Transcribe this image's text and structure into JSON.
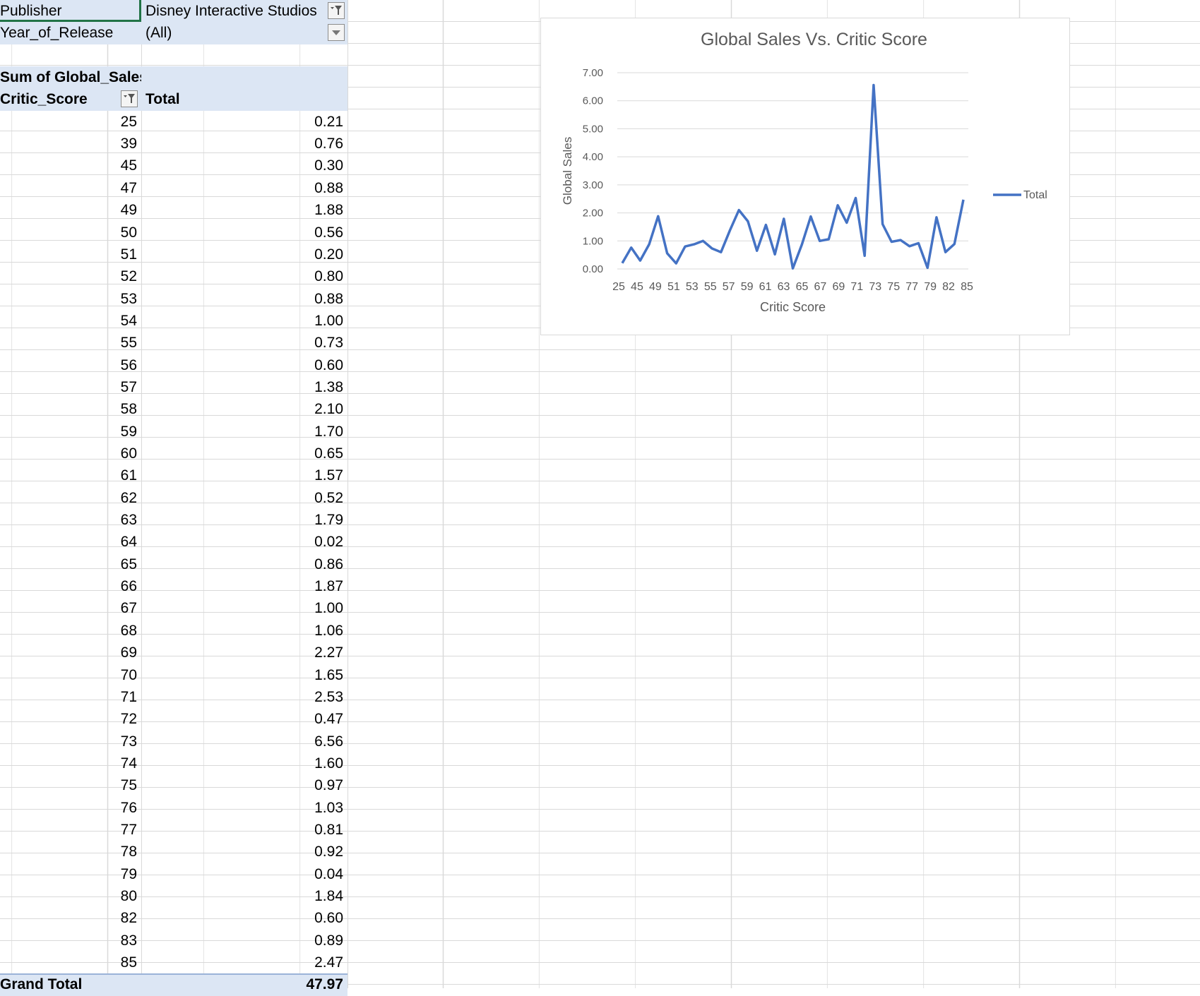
{
  "pivot": {
    "filters": [
      {
        "label": "Publisher",
        "value": "Disney Interactive Studios",
        "filter_icon": "filter-active-icon"
      },
      {
        "label": "Year_of_Release",
        "value": "(All)",
        "filter_icon": "dropdown-arrow-icon"
      }
    ],
    "values_label": "Sum of Global_Sales",
    "row_header": "Critic_Score",
    "col_header": "Total",
    "rows": [
      {
        "score": "25",
        "total": "0.21"
      },
      {
        "score": "39",
        "total": "0.76"
      },
      {
        "score": "45",
        "total": "0.30"
      },
      {
        "score": "47",
        "total": "0.88"
      },
      {
        "score": "49",
        "total": "1.88"
      },
      {
        "score": "50",
        "total": "0.56"
      },
      {
        "score": "51",
        "total": "0.20"
      },
      {
        "score": "52",
        "total": "0.80"
      },
      {
        "score": "53",
        "total": "0.88"
      },
      {
        "score": "54",
        "total": "1.00"
      },
      {
        "score": "55",
        "total": "0.73"
      },
      {
        "score": "56",
        "total": "0.60"
      },
      {
        "score": "57",
        "total": "1.38"
      },
      {
        "score": "58",
        "total": "2.10"
      },
      {
        "score": "59",
        "total": "1.70"
      },
      {
        "score": "60",
        "total": "0.65"
      },
      {
        "score": "61",
        "total": "1.57"
      },
      {
        "score": "62",
        "total": "0.52"
      },
      {
        "score": "63",
        "total": "1.79"
      },
      {
        "score": "64",
        "total": "0.02"
      },
      {
        "score": "65",
        "total": "0.86"
      },
      {
        "score": "66",
        "total": "1.87"
      },
      {
        "score": "67",
        "total": "1.00"
      },
      {
        "score": "68",
        "total": "1.06"
      },
      {
        "score": "69",
        "total": "2.27"
      },
      {
        "score": "70",
        "total": "1.65"
      },
      {
        "score": "71",
        "total": "2.53"
      },
      {
        "score": "72",
        "total": "0.47"
      },
      {
        "score": "73",
        "total": "6.56"
      },
      {
        "score": "74",
        "total": "1.60"
      },
      {
        "score": "75",
        "total": "0.97"
      },
      {
        "score": "76",
        "total": "1.03"
      },
      {
        "score": "77",
        "total": "0.81"
      },
      {
        "score": "78",
        "total": "0.92"
      },
      {
        "score": "79",
        "total": "0.04"
      },
      {
        "score": "80",
        "total": "1.84"
      },
      {
        "score": "82",
        "total": "0.60"
      },
      {
        "score": "83",
        "total": "0.89"
      },
      {
        "score": "85",
        "total": "2.47"
      }
    ],
    "grand_total_label": "Grand Total",
    "grand_total": "47.97"
  },
  "colors": {
    "header_fill": "#dce6f4",
    "series": "#4472c4",
    "gridline": "#d9d9d9",
    "axis_text": "#595959"
  },
  "chart_data": {
    "type": "line",
    "title": "Global Sales Vs. Critic Score",
    "xlabel": "Critic Score",
    "ylabel": "Global Sales",
    "ylim": [
      0,
      7
    ],
    "yticks": [
      "0.00",
      "1.00",
      "2.00",
      "3.00",
      "4.00",
      "5.00",
      "6.00",
      "7.00"
    ],
    "grid": true,
    "legend": "right",
    "categories": [
      "25",
      "39",
      "45",
      "47",
      "49",
      "50",
      "51",
      "52",
      "53",
      "54",
      "55",
      "56",
      "57",
      "58",
      "59",
      "60",
      "61",
      "62",
      "63",
      "64",
      "65",
      "66",
      "67",
      "68",
      "69",
      "70",
      "71",
      "72",
      "73",
      "74",
      "75",
      "76",
      "77",
      "78",
      "79",
      "80",
      "82",
      "83",
      "85"
    ],
    "x_tick_labels": [
      "25",
      "45",
      "49",
      "51",
      "53",
      "55",
      "57",
      "59",
      "61",
      "63",
      "65",
      "67",
      "69",
      "71",
      "73",
      "75",
      "77",
      "79",
      "82",
      "85"
    ],
    "series": [
      {
        "name": "Total",
        "values": [
          0.21,
          0.76,
          0.3,
          0.88,
          1.88,
          0.56,
          0.2,
          0.8,
          0.88,
          1.0,
          0.73,
          0.6,
          1.38,
          2.1,
          1.7,
          0.65,
          1.57,
          0.52,
          1.79,
          0.02,
          0.86,
          1.87,
          1.0,
          1.06,
          2.27,
          1.65,
          2.53,
          0.47,
          6.56,
          1.6,
          0.97,
          1.03,
          0.81,
          0.92,
          0.04,
          1.84,
          0.6,
          0.89,
          2.47
        ]
      }
    ]
  }
}
